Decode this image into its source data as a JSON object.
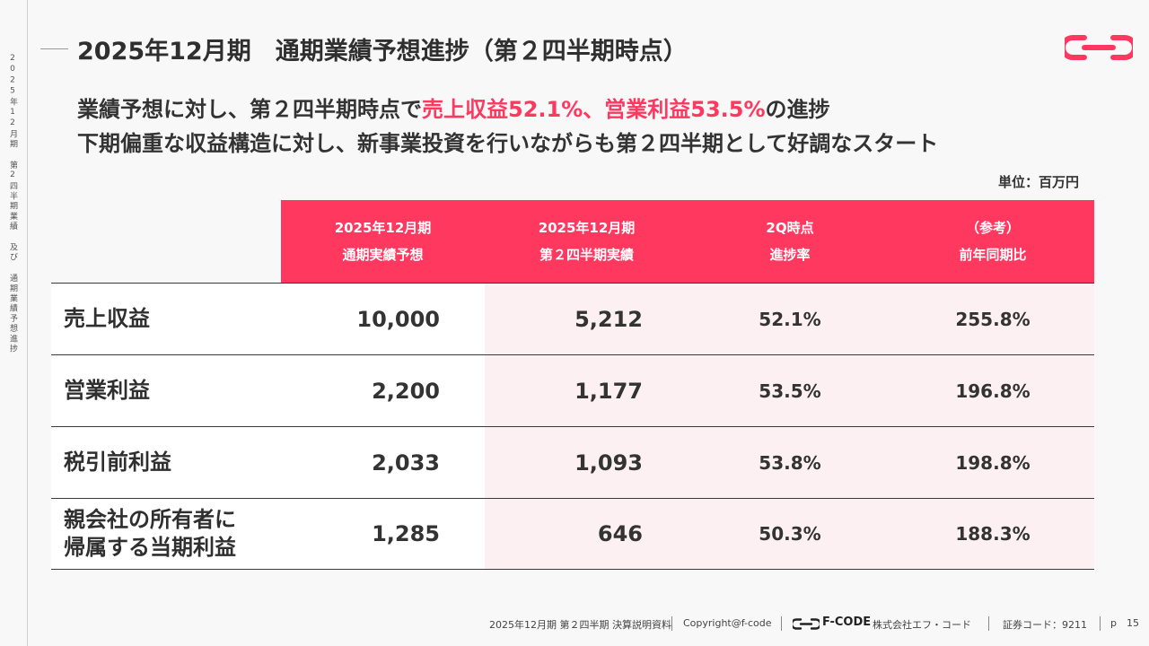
{
  "side_label": "2025年12月期 第2四半期業績 及び 通期業績予想進捗",
  "title": "2025年12月期　通期業績予想進捗（第２四半期時点）",
  "headline": {
    "line1_pre": "業績予想に対し、第２四半期時点で",
    "line1_highlight": "売上収益52.1%、営業利益53.5%",
    "line1_post": "の進捗",
    "line2": "下期偏重な収益構造に対し、新事業投資を行いながらも第２四半期として好調なスタート"
  },
  "unit": "単位：百万円",
  "table": {
    "headers": [
      {
        "line1": "2025年12月期",
        "line2": "通期実績予想"
      },
      {
        "line1": "2025年12月期",
        "line2": "第２四半期実績"
      },
      {
        "line1": "2Q時点",
        "line2": "進捗率"
      },
      {
        "line1": "（参考）",
        "line2": "前年同期比"
      }
    ],
    "rows": [
      {
        "label": "売上収益",
        "forecast": "10,000",
        "actual": "5,212",
        "progress": "52.1%",
        "yoy": "255.8%"
      },
      {
        "label": "営業利益",
        "forecast": "2,200",
        "actual": "1,177",
        "progress": "53.5%",
        "yoy": "196.8%"
      },
      {
        "label": "税引前利益",
        "forecast": "2,033",
        "actual": "1,093",
        "progress": "53.8%",
        "yoy": "198.8%"
      },
      {
        "label": "親会社の所有者に帰属する当期利益",
        "label_line1": "親会社の所有者に",
        "label_line2": "帰属する当期利益",
        "forecast": "1,285",
        "actual": "646",
        "progress": "50.3%",
        "yoy": "188.3%"
      }
    ]
  },
  "footer": {
    "doc": "2025年12月期 第２四半期 決算説明資料",
    "copyright": "Copyright@f-code",
    "brand": "F-CODE",
    "company": "株式会社エフ・コード",
    "code": "証券コード：9211",
    "page_prefix": "p",
    "page": "15"
  },
  "colors": {
    "accent": "#ff3860",
    "shade": "#fcf0f2"
  }
}
